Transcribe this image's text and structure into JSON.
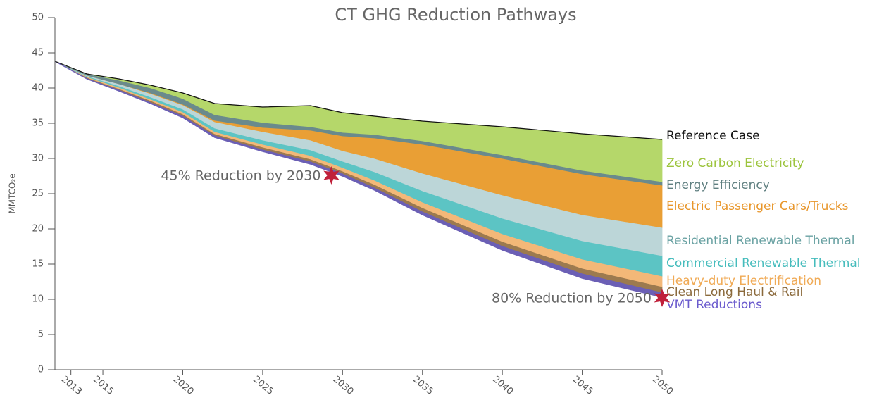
{
  "chart_data": {
    "type": "stacked_area",
    "title": "CT GHG Reduction Pathways",
    "y_label": "MMTCO₂e",
    "x": [
      2012,
      2014,
      2016,
      2018,
      2020,
      2022,
      2025,
      2028,
      2030,
      2032,
      2035,
      2040,
      2045,
      2050
    ],
    "xlim": [
      2012,
      2050
    ],
    "xticks": [
      2013,
      2015,
      2020,
      2025,
      2030,
      2035,
      2040,
      2045,
      2050
    ],
    "ylim": [
      0,
      50
    ],
    "yticks": [
      0,
      5,
      10,
      15,
      20,
      25,
      30,
      35,
      40,
      45,
      50
    ],
    "baseline": [
      43.8,
      41.3,
      39.6,
      37.8,
      35.8,
      33.0,
      31.0,
      29.2,
      27.5,
      25.5,
      22.0,
      17.0,
      13.0,
      10.3
    ],
    "series": [
      {
        "name": "VMT Reductions",
        "color": "#6b5fb5",
        "label_color": "#6a5acd",
        "values": [
          0,
          0.1,
          0.2,
          0.2,
          0.3,
          0.3,
          0.3,
          0.4,
          0.4,
          0.4,
          0.5,
          0.6,
          0.7,
          0.7
        ]
      },
      {
        "name": "Clean Long Haul & Rail",
        "color": "#9c7a4f",
        "label_color": "#8b6a3c",
        "values": [
          0,
          0.1,
          0.1,
          0.2,
          0.2,
          0.2,
          0.3,
          0.3,
          0.3,
          0.4,
          0.5,
          0.6,
          0.7,
          0.8
        ]
      },
      {
        "name": "Heavy-duty Electrification",
        "color": "#f3b878",
        "label_color": "#f0aa55",
        "values": [
          0,
          0.1,
          0.2,
          0.2,
          0.3,
          0.3,
          0.4,
          0.5,
          0.5,
          0.6,
          0.8,
          1.1,
          1.3,
          1.5
        ]
      },
      {
        "name": "Commercial Renewable Thermal",
        "color": "#5cc4c4",
        "label_color": "#45bcbc",
        "values": [
          0,
          0.1,
          0.2,
          0.3,
          0.4,
          0.5,
          0.6,
          0.8,
          0.9,
          1.2,
          1.6,
          2.2,
          2.6,
          2.9
        ]
      },
      {
        "name": "Residential Renewable Thermal",
        "color": "#bcd6d8",
        "label_color": "#6aa2a3",
        "values": [
          0,
          0.1,
          0.3,
          0.5,
          0.6,
          0.9,
          1.2,
          1.4,
          1.5,
          1.9,
          2.5,
          3.3,
          3.7,
          4.0
        ]
      },
      {
        "name": "Electric Passenger Cars/Trucks",
        "color": "#e99f35",
        "label_color": "#e8962a",
        "values": [
          0,
          0,
          0,
          0.1,
          0.1,
          0.2,
          0.6,
          1.4,
          2.1,
          2.9,
          4.1,
          5.2,
          5.8,
          6.0
        ]
      },
      {
        "name": "Energy Efficiency",
        "color": "#6a8a8c",
        "label_color": "#5f7f80",
        "values": [
          0,
          0.2,
          0.5,
          0.7,
          0.8,
          0.8,
          0.7,
          0.5,
          0.5,
          0.5,
          0.5,
          0.5,
          0.5,
          0.5
        ]
      },
      {
        "name": "Zero Carbon Electricity",
        "color": "#b5d76a",
        "label_color": "#9cc43c",
        "values": [
          0,
          0,
          0.2,
          0.4,
          0.8,
          1.6,
          2.2,
          3.0,
          2.8,
          2.6,
          2.8,
          4.0,
          5.2,
          6.0
        ]
      }
    ],
    "reference": {
      "name": "Reference Case",
      "color": "#111111",
      "values": [
        43.8,
        42.0,
        41.3,
        40.4,
        39.3,
        37.8,
        37.3,
        37.5,
        36.5,
        36.0,
        35.3,
        34.5,
        33.5,
        32.7
      ]
    },
    "annotations": [
      {
        "text": "45% Reduction by 2030",
        "x": 2029.3,
        "y": 27.6
      },
      {
        "text": "80% Reduction by 2050",
        "x": 2050,
        "y": 10.2
      }
    ],
    "star_color": "#c0203a"
  }
}
